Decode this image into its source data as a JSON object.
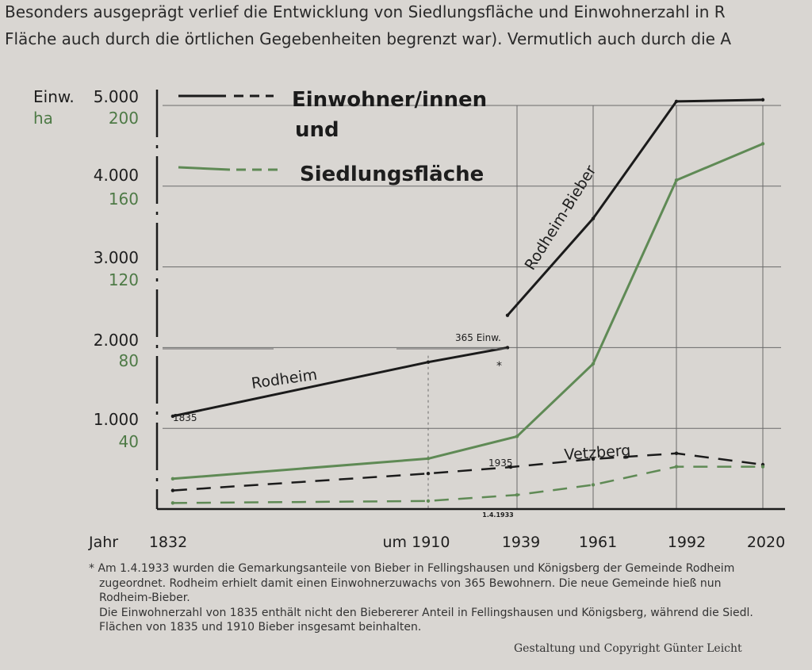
{
  "intro_text": {
    "line1": "Besonders ausgeprägt verlief die Entwicklung von Siedlungsfläche und Einwohnerzahl in R",
    "line2": "Fläche auch durch die örtlichen Gegebenheiten begrenzt war). Vermutlich auch durch die A"
  },
  "chart_data": {
    "type": "line",
    "title": "Einwohner/innen und Siedlungsfläche",
    "legend": [
      {
        "label": "Einwohner/innen",
        "color": "#1b1b1b"
      },
      {
        "label": "und",
        "color": "#1b1b1b"
      },
      {
        "label": "Siedlungsfläche",
        "color": "#5f8a55"
      }
    ],
    "y_left_title": "Einw.",
    "y_right_title": "ha",
    "y_ticks_einw": [
      "5.000",
      "4.000",
      "3.000",
      "2.000",
      "1.000"
    ],
    "y_ticks_ha": [
      "200",
      "160",
      "120",
      "80",
      "40"
    ],
    "ylim_einw": [
      0,
      5000
    ],
    "ylim_ha": [
      0,
      200
    ],
    "x_title": "Jahr",
    "x_ticks": [
      {
        "year": 1832,
        "label": "1832"
      },
      {
        "year": 1910,
        "label": "um 1910"
      },
      {
        "year": 1939,
        "label": "1939"
      },
      {
        "year": 1961,
        "label": "1961"
      },
      {
        "year": 1992,
        "label": "1992"
      },
      {
        "year": 2020,
        "label": "2020"
      }
    ],
    "x_mark_1933": "1.4.1933",
    "series": [
      {
        "name": "Rodheim",
        "kind": "einw",
        "style": "solid",
        "color": "#1b1b1b",
        "points": [
          [
            1835,
            1150
          ],
          [
            1910,
            1820
          ],
          [
            1933,
            2000
          ]
        ]
      },
      {
        "name": "Rodheim-Bieber",
        "kind": "einw",
        "style": "solid",
        "color": "#1b1b1b",
        "points": [
          [
            1933,
            2400
          ],
          [
            1961,
            3600
          ],
          [
            1992,
            5050
          ],
          [
            2020,
            5070
          ]
        ]
      },
      {
        "name": "Vetzberg",
        "kind": "einw",
        "style": "dashed",
        "color": "#1b1b1b",
        "points": [
          [
            1835,
            230
          ],
          [
            1910,
            440
          ],
          [
            1935,
            520
          ],
          [
            1961,
            620
          ],
          [
            1992,
            690
          ],
          [
            2020,
            550
          ]
        ]
      },
      {
        "kind": "ha",
        "style": "solid",
        "color": "#5f8a55",
        "points": [
          [
            1835,
            15
          ],
          [
            1910,
            25
          ],
          [
            1939,
            36
          ],
          [
            1961,
            72
          ],
          [
            1992,
            163
          ],
          [
            2020,
            181
          ]
        ]
      },
      {
        "kind": "ha",
        "style": "dashed",
        "color": "#5f8a55",
        "points": [
          [
            1835,
            3
          ],
          [
            1910,
            4
          ],
          [
            1939,
            7
          ],
          [
            1961,
            12
          ],
          [
            1992,
            21
          ],
          [
            2020,
            21
          ]
        ]
      }
    ],
    "annotations": {
      "rodheim": "Rodheim",
      "rodheim_bieber": "Rodheim-Bieber",
      "vetzberg": "Vetzberg",
      "y1835": "1835",
      "y1935": "1935",
      "einw365": "365 Einw.",
      "star": "*"
    }
  },
  "notes": {
    "line1": "* Am 1.4.1933 wurden die Gemarkungsanteile von Bieber in Fellingshausen und Königsberg der Gemeinde Rodheim",
    "line2": "zugeordnet. Rodheim erhielt damit einen Einwohnerzuwachs von 365 Bewohnern. Die neue Gemeinde hieß nun",
    "line3": "Rodheim-Bieber.",
    "line4": "Die Einwohnerzahl von 1835 enthält nicht den Biebererer Anteil in Fellingshausen und Königsberg, während die Siedl.",
    "line5": "Flächen von 1835 und 1910 Bieber insgesamt beinhalten."
  },
  "copyright": "Gestaltung und Copyright Günter Leicht"
}
